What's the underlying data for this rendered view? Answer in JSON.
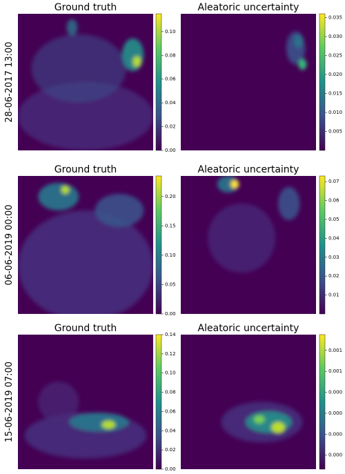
{
  "chart_data": [
    {
      "type": "heatmap",
      "title": "Ground truth",
      "ylabel": "28-06-2017 13:00",
      "clim": [
        0,
        0.115
      ],
      "cticks": [
        {
          "value": 0,
          "label": "0.00"
        },
        {
          "value": 0.02,
          "label": "0.02"
        },
        {
          "value": 0.04,
          "label": "0.04"
        },
        {
          "value": 0.06,
          "label": "0.06"
        },
        {
          "value": 0.08,
          "label": "0.08"
        },
        {
          "value": 0.1,
          "label": "0.10"
        }
      ]
    },
    {
      "type": "heatmap",
      "title": "Aleatoric uncertainty",
      "clim": [
        0,
        0.036
      ],
      "cticks": [
        0.005,
        {
          "value": 0.01,
          "label": "0.010"
        },
        0.015,
        {
          "value": 0.02,
          "label": "0.020"
        },
        0.025,
        {
          "value": 0.03,
          "label": "0.030"
        },
        0.035
      ]
    },
    {
      "type": "heatmap",
      "title": "Ground truth",
      "ylabel": "06-06-2019 00:00",
      "clim": [
        0,
        0.235
      ],
      "cticks": [
        {
          "value": 0,
          "label": "0.00"
        },
        0.05,
        {
          "value": 0.1,
          "label": "0.10"
        },
        0.15,
        {
          "value": 0.2,
          "label": "0.20"
        }
      ]
    },
    {
      "type": "heatmap",
      "title": "Aleatoric uncertainty",
      "clim": [
        0,
        0.073
      ],
      "cticks": [
        0.01,
        0.02,
        0.03,
        0.04,
        0.05,
        0.06,
        0.07
      ]
    },
    {
      "type": "heatmap",
      "title": "Ground truth",
      "ylabel": "15-06-2019 07:00",
      "clim": [
        0,
        0.14
      ],
      "cticks": [
        {
          "value": 0,
          "label": "0.00"
        },
        {
          "value": 0.02,
          "label": "0.02"
        },
        {
          "value": 0.04,
          "label": "0.04"
        },
        {
          "value": 0.06,
          "label": "0.06"
        },
        {
          "value": 0.08,
          "label": "0.08"
        },
        {
          "value": 0.1,
          "label": "0.10"
        },
        {
          "value": 0.12,
          "label": "0.12"
        },
        {
          "value": 0.14,
          "label": "0.14"
        }
      ]
    },
    {
      "type": "heatmap",
      "title": "Aleatoric uncertainty",
      "clim": [
        4e-05,
        0.00081
      ],
      "cticks": [
        {
          "value": 0.00012,
          "label": "0.000"
        },
        {
          "value": 0.00024,
          "label": "0.000"
        },
        {
          "value": 0.00036,
          "label": "0.000"
        },
        {
          "value": 0.00048,
          "label": "0.000"
        },
        {
          "value": 0.0006,
          "label": "0.001"
        },
        {
          "value": 0.00072,
          "label": "0.001"
        }
      ]
    }
  ]
}
